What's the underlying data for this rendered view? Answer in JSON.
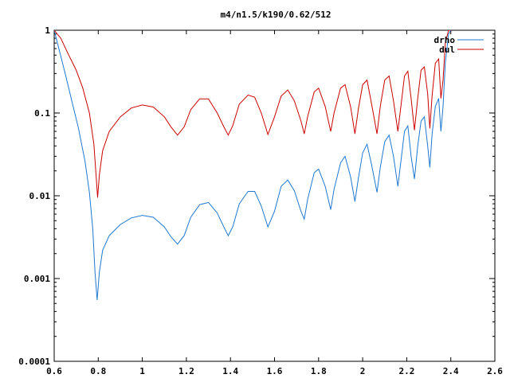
{
  "chart_data": {
    "type": "line",
    "title": "m4/n1.5/k190/0.62/512",
    "xlabel": "",
    "ylabel": "",
    "xlim": [
      0.6,
      2.6
    ],
    "ylim": [
      0.0001,
      1
    ],
    "yscale": "log",
    "grid": false,
    "legend_position": "top-right",
    "x_ticks": [
      0.6,
      0.8,
      1,
      1.2,
      1.4,
      1.6,
      1.8,
      2,
      2.2,
      2.4,
      2.6
    ],
    "x_tick_labels": [
      "0.6",
      "0.8",
      "1",
      "1.2",
      "1.4",
      "1.6",
      "1.8",
      "2",
      "2.2",
      "2.4",
      "2.6"
    ],
    "y_ticks": [
      0.0001,
      0.001,
      0.01,
      0.1,
      1
    ],
    "y_tick_labels": [
      "0.0001",
      "0.001",
      "0.01",
      "0.1",
      "1"
    ],
    "series": [
      {
        "name": "drho",
        "color": "#1f78d1",
        "points": [
          [
            0.6,
            1.0
          ],
          [
            0.62,
            0.62
          ],
          [
            0.65,
            0.3
          ],
          [
            0.68,
            0.14
          ],
          [
            0.71,
            0.066
          ],
          [
            0.74,
            0.026
          ],
          [
            0.76,
            0.011
          ],
          [
            0.775,
            0.004
          ],
          [
            0.785,
            0.0012
          ],
          [
            0.795,
            0.00055
          ],
          [
            0.805,
            0.0012
          ],
          [
            0.82,
            0.0022
          ],
          [
            0.85,
            0.0033
          ],
          [
            0.9,
            0.0045
          ],
          [
            0.95,
            0.0054
          ],
          [
            1.0,
            0.0058
          ],
          [
            1.05,
            0.0055
          ],
          [
            1.1,
            0.0042
          ],
          [
            1.13,
            0.0032
          ],
          [
            1.16,
            0.0026
          ],
          [
            1.19,
            0.0033
          ],
          [
            1.22,
            0.0055
          ],
          [
            1.26,
            0.0078
          ],
          [
            1.3,
            0.0083
          ],
          [
            1.34,
            0.0062
          ],
          [
            1.37,
            0.0042
          ],
          [
            1.39,
            0.0033
          ],
          [
            1.41,
            0.0042
          ],
          [
            1.44,
            0.008
          ],
          [
            1.48,
            0.0113
          ],
          [
            1.51,
            0.0113
          ],
          [
            1.54,
            0.0075
          ],
          [
            1.57,
            0.0042
          ],
          [
            1.6,
            0.0065
          ],
          [
            1.63,
            0.013
          ],
          [
            1.66,
            0.0155
          ],
          [
            1.69,
            0.0115
          ],
          [
            1.72,
            0.0065
          ],
          [
            1.735,
            0.0052
          ],
          [
            1.75,
            0.009
          ],
          [
            1.78,
            0.019
          ],
          [
            1.8,
            0.021
          ],
          [
            1.83,
            0.013
          ],
          [
            1.855,
            0.0068
          ],
          [
            1.87,
            0.012
          ],
          [
            1.9,
            0.025
          ],
          [
            1.92,
            0.03
          ],
          [
            1.945,
            0.017
          ],
          [
            1.965,
            0.0085
          ],
          [
            1.98,
            0.016
          ],
          [
            2.0,
            0.033
          ],
          [
            2.02,
            0.042
          ],
          [
            2.04,
            0.024
          ],
          [
            2.065,
            0.011
          ],
          [
            2.08,
            0.022
          ],
          [
            2.1,
            0.045
          ],
          [
            2.12,
            0.054
          ],
          [
            2.14,
            0.03
          ],
          [
            2.16,
            0.013
          ],
          [
            2.175,
            0.028
          ],
          [
            2.19,
            0.06
          ],
          [
            2.205,
            0.07
          ],
          [
            2.22,
            0.03
          ],
          [
            2.235,
            0.016
          ],
          [
            2.25,
            0.04
          ],
          [
            2.265,
            0.08
          ],
          [
            2.28,
            0.09
          ],
          [
            2.295,
            0.04
          ],
          [
            2.305,
            0.022
          ],
          [
            2.315,
            0.055
          ],
          [
            2.33,
            0.12
          ],
          [
            2.345,
            0.15
          ],
          [
            2.355,
            0.06
          ],
          [
            2.365,
            0.12
          ],
          [
            2.375,
            0.4
          ],
          [
            2.39,
            0.9
          ],
          [
            2.4,
            1.0
          ]
        ]
      },
      {
        "name": "dul",
        "color": "#cc0000",
        "points": [
          [
            0.6,
            1.0
          ],
          [
            0.63,
            0.8
          ],
          [
            0.66,
            0.54
          ],
          [
            0.7,
            0.33
          ],
          [
            0.73,
            0.2
          ],
          [
            0.76,
            0.1
          ],
          [
            0.78,
            0.042
          ],
          [
            0.79,
            0.018
          ],
          [
            0.797,
            0.0095
          ],
          [
            0.805,
            0.018
          ],
          [
            0.82,
            0.035
          ],
          [
            0.85,
            0.06
          ],
          [
            0.9,
            0.09
          ],
          [
            0.95,
            0.115
          ],
          [
            1.0,
            0.125
          ],
          [
            1.05,
            0.118
          ],
          [
            1.1,
            0.09
          ],
          [
            1.13,
            0.068
          ],
          [
            1.16,
            0.054
          ],
          [
            1.19,
            0.068
          ],
          [
            1.22,
            0.11
          ],
          [
            1.26,
            0.148
          ],
          [
            1.3,
            0.148
          ],
          [
            1.34,
            0.1
          ],
          [
            1.37,
            0.068
          ],
          [
            1.39,
            0.054
          ],
          [
            1.41,
            0.07
          ],
          [
            1.44,
            0.128
          ],
          [
            1.48,
            0.165
          ],
          [
            1.51,
            0.155
          ],
          [
            1.54,
            0.1
          ],
          [
            1.57,
            0.055
          ],
          [
            1.6,
            0.09
          ],
          [
            1.63,
            0.16
          ],
          [
            1.66,
            0.19
          ],
          [
            1.69,
            0.14
          ],
          [
            1.72,
            0.08
          ],
          [
            1.735,
            0.056
          ],
          [
            1.75,
            0.09
          ],
          [
            1.78,
            0.18
          ],
          [
            1.8,
            0.2
          ],
          [
            1.83,
            0.12
          ],
          [
            1.855,
            0.06
          ],
          [
            1.87,
            0.1
          ],
          [
            1.9,
            0.2
          ],
          [
            1.92,
            0.22
          ],
          [
            1.945,
            0.12
          ],
          [
            1.965,
            0.056
          ],
          [
            1.98,
            0.11
          ],
          [
            2.0,
            0.22
          ],
          [
            2.02,
            0.25
          ],
          [
            2.04,
            0.13
          ],
          [
            2.065,
            0.056
          ],
          [
            2.08,
            0.12
          ],
          [
            2.1,
            0.25
          ],
          [
            2.12,
            0.28
          ],
          [
            2.14,
            0.14
          ],
          [
            2.16,
            0.06
          ],
          [
            2.175,
            0.13
          ],
          [
            2.19,
            0.28
          ],
          [
            2.205,
            0.32
          ],
          [
            2.22,
            0.15
          ],
          [
            2.235,
            0.062
          ],
          [
            2.25,
            0.15
          ],
          [
            2.265,
            0.33
          ],
          [
            2.28,
            0.36
          ],
          [
            2.295,
            0.17
          ],
          [
            2.305,
            0.065
          ],
          [
            2.315,
            0.16
          ],
          [
            2.33,
            0.4
          ],
          [
            2.345,
            0.45
          ],
          [
            2.355,
            0.15
          ],
          [
            2.365,
            0.25
          ],
          [
            2.375,
            0.7
          ],
          [
            2.39,
            1.0
          ],
          [
            2.4,
            1.0
          ]
        ]
      }
    ]
  }
}
